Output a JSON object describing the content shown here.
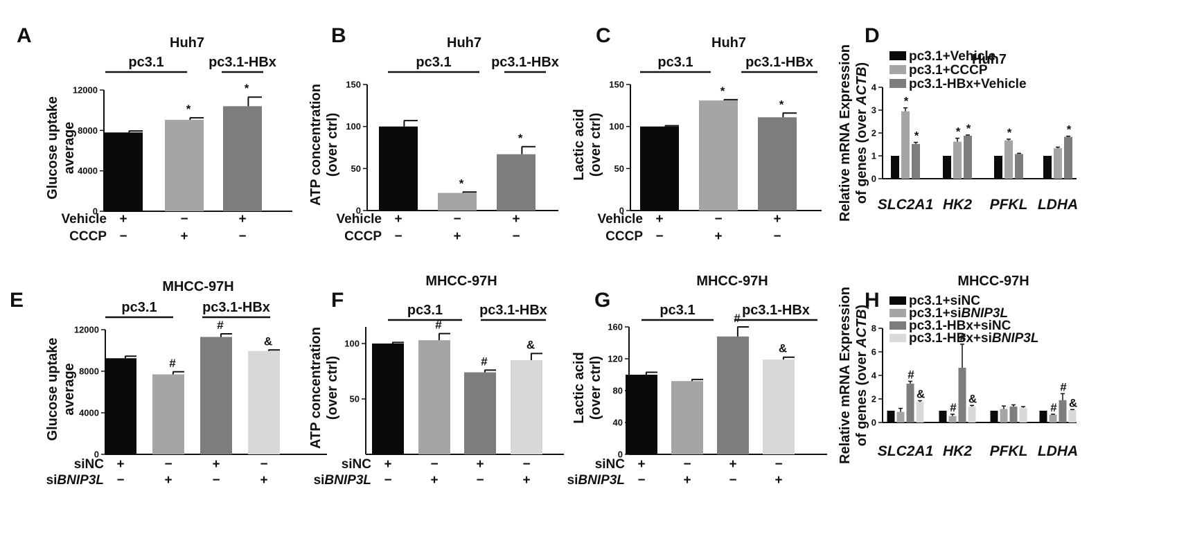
{
  "colors": {
    "black": "#0a0a0a",
    "light": "#a5a5a5",
    "mid": "#7d7d7d",
    "pale": "#d8d8d8"
  },
  "chart_data": [
    {
      "id": "A",
      "letter": "A",
      "type": "bar",
      "title": "Huh7",
      "ylabel": [
        "Glucose uptake",
        "average"
      ],
      "ylim": [
        0,
        12000
      ],
      "yticks": [
        0,
        4000,
        8000,
        12000
      ],
      "groups": [
        "pc3.1",
        "pc3.1-HBx"
      ],
      "values": [
        7800,
        9050,
        10400
      ],
      "errors": [
        150,
        200,
        900
      ],
      "marks": [
        "",
        "*",
        "*"
      ],
      "colors": [
        "black",
        "light",
        "mid"
      ],
      "conditions": [
        {
          "label": "Vehicle",
          "signs": [
            "+",
            "−",
            "+"
          ]
        },
        {
          "label": "CCCP",
          "signs": [
            "−",
            "+",
            "−"
          ]
        }
      ]
    },
    {
      "id": "B",
      "letter": "B",
      "type": "bar",
      "title": "Huh7",
      "ylabel": [
        "ATP concentration",
        "(over ctrl)"
      ],
      "ylim": [
        0,
        150
      ],
      "yticks": [
        0,
        50,
        100,
        150
      ],
      "groups": [
        "pc3.1",
        "pc3.1-HBx"
      ],
      "values": [
        100,
        21,
        67
      ],
      "errors": [
        7,
        1,
        9
      ],
      "marks": [
        "",
        "*",
        "*"
      ],
      "colors": [
        "black",
        "light",
        "mid"
      ],
      "conditions": [
        {
          "label": "Vehicle",
          "signs": [
            "+",
            "−",
            "+"
          ]
        },
        {
          "label": "CCCP",
          "signs": [
            "−",
            "+",
            "−"
          ]
        }
      ]
    },
    {
      "id": "C",
      "letter": "C",
      "type": "bar",
      "title": "Huh7",
      "ylabel": [
        "Lactic acid",
        "(over ctrl)"
      ],
      "ylim": [
        0,
        150
      ],
      "yticks": [
        0,
        50,
        100,
        150
      ],
      "groups": [
        "pc3.1",
        "pc3.1-HBx"
      ],
      "values": [
        100,
        131,
        111
      ],
      "errors": [
        1,
        1,
        5
      ],
      "marks": [
        "",
        "*",
        "*"
      ],
      "colors": [
        "black",
        "light",
        "mid"
      ],
      "conditions": [
        {
          "label": "Vehicle",
          "signs": [
            "+",
            "−",
            "+"
          ]
        },
        {
          "label": "CCCP",
          "signs": [
            "−",
            "+",
            "−"
          ]
        }
      ]
    },
    {
      "id": "D",
      "letter": "D",
      "type": "bar",
      "title": "Huh7",
      "ylabel": [
        "Relative mRNA Expression",
        "of genes (over ACTB)"
      ],
      "ylim": [
        0,
        4
      ],
      "yticks": [
        0,
        1,
        2,
        3,
        4
      ],
      "categories": [
        "SLC2A1",
        "HK2",
        "PFKL",
        "LDHA"
      ],
      "series": [
        {
          "name": "pc3.1+Vehicle",
          "color": "black",
          "values": [
            1,
            1,
            1,
            1
          ],
          "errors": [
            0,
            0,
            0,
            0
          ],
          "marks": [
            "",
            "",
            "",
            ""
          ]
        },
        {
          "name": "pc3.1+CCCP",
          "color": "light",
          "values": [
            2.95,
            1.62,
            1.68,
            1.33
          ],
          "errors": [
            0.15,
            0.15,
            0.05,
            0.05
          ],
          "marks": [
            "*",
            "*",
            "*",
            ""
          ]
        },
        {
          "name": "pc3.1-HBx+Vehicle",
          "color": "mid",
          "values": [
            1.52,
            1.88,
            1.08,
            1.83
          ],
          "errors": [
            0.07,
            0.03,
            0.03,
            0.03
          ],
          "marks": [
            "*",
            "*",
            "",
            "*"
          ]
        }
      ]
    },
    {
      "id": "E",
      "letter": "E",
      "type": "bar",
      "title": "MHCC-97H",
      "ylabel": [
        "Glucose uptake",
        "average"
      ],
      "ylim": [
        0,
        12000
      ],
      "yticks": [
        0,
        4000,
        8000,
        12000
      ],
      "groups": [
        "pc3.1",
        "pc3.1-HBx"
      ],
      "values": [
        9250,
        7700,
        11300,
        9950
      ],
      "errors": [
        200,
        250,
        300,
        100
      ],
      "marks": [
        "",
        "#",
        "#",
        "&"
      ],
      "colors": [
        "black",
        "light",
        "mid",
        "pale"
      ],
      "conditions": [
        {
          "label": "siNC",
          "signs": [
            "+",
            "−",
            "+",
            "−"
          ]
        },
        {
          "label": "siBNIP3L",
          "signs": [
            "−",
            "+",
            "−",
            "+"
          ]
        }
      ]
    },
    {
      "id": "F",
      "letter": "F",
      "type": "bar",
      "title": "MHCC-97H",
      "ylabel": [
        "ATP concentration",
        "(over ctrl)"
      ],
      "ylim": [
        0,
        115
      ],
      "yticks": [
        50,
        100
      ],
      "groups": [
        "pc3.1",
        "pc3.1-HBx"
      ],
      "values": [
        100,
        103,
        74,
        85
      ],
      "errors": [
        1,
        6,
        2,
        6
      ],
      "marks": [
        "",
        "#",
        "#",
        "&"
      ],
      "colors": [
        "black",
        "light",
        "mid",
        "pale"
      ],
      "conditions": [
        {
          "label": "siNC",
          "signs": [
            "+",
            "−",
            "+",
            "−"
          ]
        },
        {
          "label": "siBNIP3L",
          "signs": [
            "−",
            "+",
            "−",
            "+"
          ]
        }
      ]
    },
    {
      "id": "G",
      "letter": "G",
      "type": "bar",
      "title": "MHCC-97H",
      "ylabel": [
        "Lactic acid",
        "(over ctrl)"
      ],
      "ylim": [
        0,
        160
      ],
      "yticks": [
        0,
        40,
        80,
        120,
        160
      ],
      "groups": [
        "pc3.1",
        "pc3.1-HBx"
      ],
      "values": [
        100,
        92,
        148,
        119
      ],
      "errors": [
        3,
        2,
        12,
        3
      ],
      "marks": [
        "",
        "",
        "#",
        "&"
      ],
      "colors": [
        "black",
        "light",
        "mid",
        "pale"
      ],
      "conditions": [
        {
          "label": "siNC",
          "signs": [
            "+",
            "−",
            "+",
            "−"
          ]
        },
        {
          "label": "siBNIP3L",
          "signs": [
            "−",
            "+",
            "−",
            "+"
          ]
        }
      ]
    },
    {
      "id": "H",
      "letter": "H",
      "type": "bar",
      "title": "MHCC-97H",
      "ylabel": [
        "Relative mRNA Expression",
        "of genes (over ACTB)"
      ],
      "ylim": [
        0,
        8
      ],
      "yticks": [
        0,
        2,
        4,
        6,
        8
      ],
      "categories": [
        "SLC2A1",
        "HK2",
        "PFKL",
        "LDHA"
      ],
      "series": [
        {
          "name": "pc3.1+siNC",
          "color": "black",
          "values": [
            1,
            1,
            1,
            1
          ],
          "errors": [
            0,
            0,
            0,
            0
          ],
          "marks": [
            "",
            "",
            "",
            ""
          ]
        },
        {
          "name": "pc3.1+siBNIP3L",
          "color": "light",
          "values": [
            0.9,
            0.55,
            1.15,
            0.65
          ],
          "errors": [
            0.3,
            0.15,
            0.25,
            0.05
          ],
          "marks": [
            "",
            "#",
            "",
            "#"
          ]
        },
        {
          "name": "pc3.1-HBx+siNC",
          "color": "mid",
          "values": [
            3.3,
            4.65,
            1.35,
            1.9
          ],
          "errors": [
            0.2,
            2.0,
            0.15,
            0.55
          ],
          "marks": [
            "#",
            "#",
            "",
            "#"
          ]
        },
        {
          "name": "pc3.1-HBx+siBNIP3L",
          "color": "pale",
          "values": [
            1.75,
            1.35,
            1.25,
            1.05
          ],
          "errors": [
            0.1,
            0.1,
            0.1,
            0.05
          ],
          "marks": [
            "&",
            "&",
            "",
            "&"
          ]
        }
      ]
    }
  ]
}
